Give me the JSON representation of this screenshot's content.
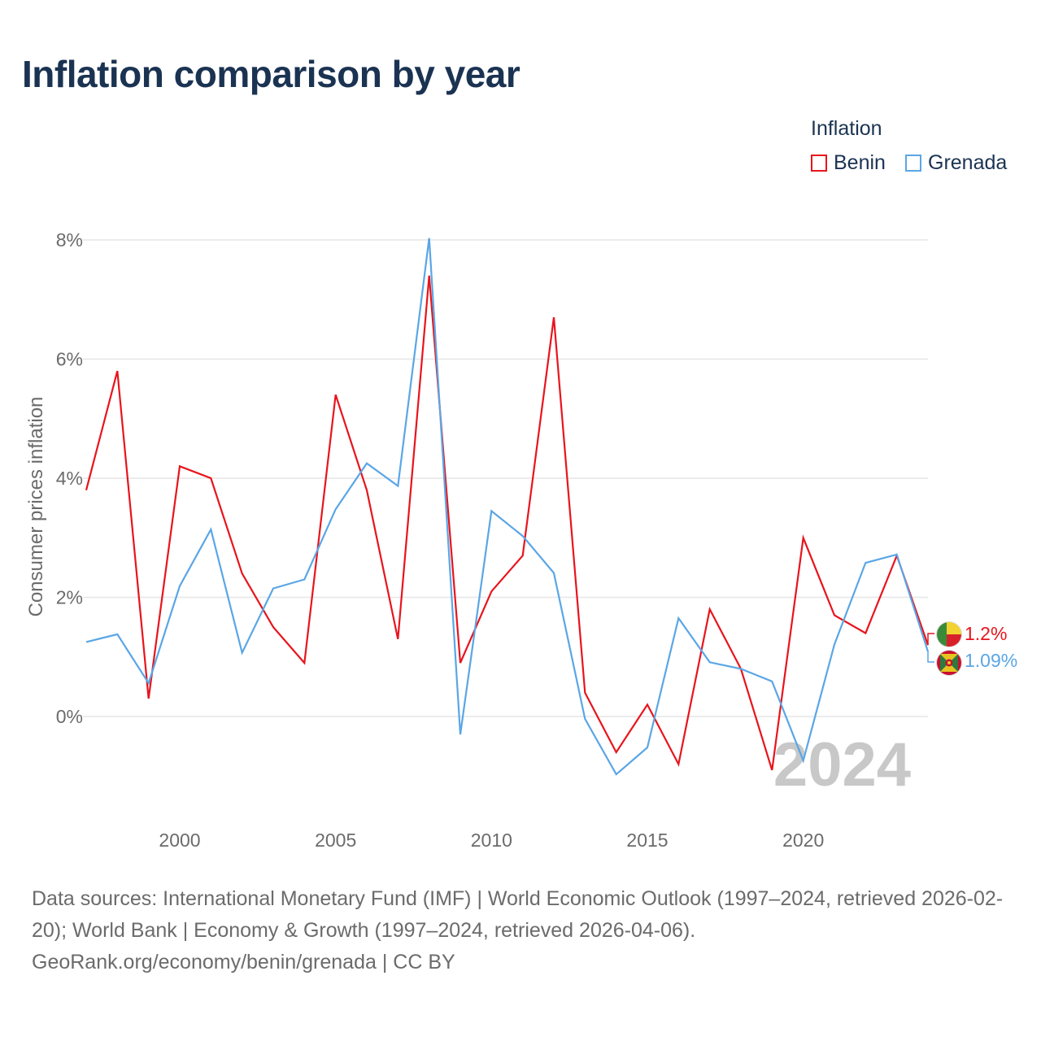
{
  "title": "Inflation comparison by year",
  "legend": {
    "title": "Inflation",
    "items": [
      {
        "label": "Benin",
        "color": "#e8141c"
      },
      {
        "label": "Grenada",
        "color": "#5aa6e6"
      }
    ]
  },
  "current_year": "2024",
  "end_labels": {
    "benin": "1.2%",
    "grenada": "1.09%"
  },
  "footer": {
    "sources": "Data sources: International Monetary Fund (IMF) | World Economic Outlook (1997–2024, retrieved 2026-02-20); World Bank | Economy & Growth (1997–2024, retrieved 2026-04-06).",
    "credit": "GeoRank.org/economy/benin/grenada | CC BY"
  },
  "chart_data": {
    "type": "line",
    "title": "Inflation comparison by year",
    "xlabel": "",
    "ylabel": "Consumer prices inflation",
    "xlim": [
      1997,
      2024
    ],
    "ylim": [
      -1.5,
      8.2
    ],
    "y_ticks": [
      0,
      2,
      4,
      6,
      8
    ],
    "y_tick_labels": [
      "0%",
      "2%",
      "4%",
      "6%",
      "8%"
    ],
    "x_ticks": [
      2000,
      2005,
      2010,
      2015,
      2020
    ],
    "x_tick_labels": [
      "2000",
      "2005",
      "2010",
      "2015",
      "2020"
    ],
    "grid": true,
    "legend_position": "top-right",
    "x": [
      1997,
      1998,
      1999,
      2000,
      2001,
      2002,
      2003,
      2004,
      2005,
      2006,
      2007,
      2008,
      2009,
      2010,
      2011,
      2012,
      2013,
      2014,
      2015,
      2016,
      2017,
      2018,
      2019,
      2020,
      2021,
      2022,
      2023,
      2024
    ],
    "series": [
      {
        "name": "Benin",
        "color": "#e8141c",
        "values": [
          3.8,
          5.8,
          0.3,
          4.2,
          4.0,
          2.4,
          1.5,
          0.9,
          5.4,
          3.8,
          1.3,
          7.4,
          0.9,
          2.1,
          2.7,
          6.7,
          0.4,
          -0.6,
          0.2,
          -0.8,
          1.8,
          0.8,
          -0.9,
          3.0,
          1.7,
          1.4,
          2.7,
          1.2
        ]
      },
      {
        "name": "Grenada",
        "color": "#5aa6e6",
        "values": [
          1.25,
          1.38,
          0.56,
          2.19,
          3.14,
          1.07,
          2.15,
          2.3,
          3.48,
          4.25,
          3.87,
          8.03,
          -0.3,
          3.45,
          3.03,
          2.41,
          -0.04,
          -0.97,
          -0.52,
          1.65,
          0.91,
          0.8,
          0.59,
          -0.74,
          1.21,
          2.58,
          2.72,
          1.09
        ]
      }
    ]
  }
}
